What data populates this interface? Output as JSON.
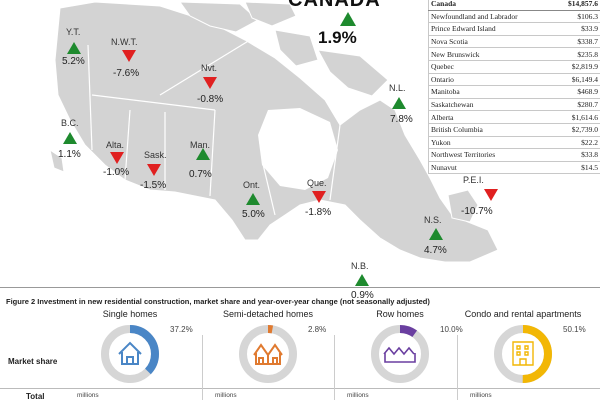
{
  "chart_data": [
    {
      "type": "map",
      "title": "CANADA",
      "national": {
        "label": "CANADA",
        "change": "1.9%",
        "direction": "up"
      },
      "regions": [
        {
          "abbr": "Y.T.",
          "change": "5.2%",
          "direction": "up"
        },
        {
          "abbr": "N.W.T.",
          "change": "-7.6%",
          "direction": "down"
        },
        {
          "abbr": "Nvt.",
          "change": "-0.8%",
          "direction": "down"
        },
        {
          "abbr": "B.C.",
          "change": "1.1%",
          "direction": "up"
        },
        {
          "abbr": "Alta.",
          "change": "-1.0%",
          "direction": "down"
        },
        {
          "abbr": "Sask.",
          "change": "-1.5%",
          "direction": "down"
        },
        {
          "abbr": "Man.",
          "change": "0.7%",
          "direction": "up"
        },
        {
          "abbr": "Ont.",
          "change": "5.0%",
          "direction": "up"
        },
        {
          "abbr": "Que.",
          "change": "-1.8%",
          "direction": "down"
        },
        {
          "abbr": "N.L.",
          "change": "7.8%",
          "direction": "up"
        },
        {
          "abbr": "P.E.I.",
          "change": "-10.7%",
          "direction": "down"
        },
        {
          "abbr": "N.S.",
          "change": "4.7%",
          "direction": "up"
        },
        {
          "abbr": "N.B.",
          "change": "0.9%",
          "direction": "up"
        }
      ],
      "colors": {
        "up": "#1e8a2e",
        "down": "#e02020",
        "land": "#d3d3d3",
        "border": "#ffffff"
      }
    },
    {
      "type": "table",
      "rows": [
        {
          "name": "Canada",
          "value": "$14,857.6"
        },
        {
          "name": "Newfoundland and Labrador",
          "value": "$106.3"
        },
        {
          "name": "Prince Edward Island",
          "value": "$33.9"
        },
        {
          "name": "Nova Scotia",
          "value": "$338.7"
        },
        {
          "name": "New Brunswick",
          "value": "$235.8"
        },
        {
          "name": "Quebec",
          "value": "$2,819.9"
        },
        {
          "name": "Ontario",
          "value": "$6,149.4"
        },
        {
          "name": "Manitoba",
          "value": "$468.9"
        },
        {
          "name": "Saskatchewan",
          "value": "$280.7"
        },
        {
          "name": "Alberta",
          "value": "$1,614.6"
        },
        {
          "name": "British Columbia",
          "value": "$2,739.0"
        },
        {
          "name": "Yukon",
          "value": "$22.2"
        },
        {
          "name": "Northwest Territories",
          "value": "$33.8"
        },
        {
          "name": "Nunavut",
          "value": "$14.5"
        }
      ]
    },
    {
      "type": "pie",
      "title": "Figure 2 Investment in new residential construction, market share and year-over-year change (not seasonally adjusted)",
      "row_labels": {
        "market_share": "Market share",
        "total": "Total"
      },
      "unit_word": "millions",
      "categories": [
        "Single homes",
        "Semi-detached homes",
        "Row homes",
        "Condo and rental apartments"
      ],
      "values": [
        37.2,
        2.8,
        10.0,
        50.1
      ],
      "value_labels": [
        "37.2%",
        "2.8%",
        "10.0%",
        "50.1%"
      ],
      "colors": [
        "#4a86c6",
        "#e07a30",
        "#6a3fa0",
        "#f2b705"
      ],
      "track_color": "#d6d6d6",
      "icons": [
        "house-icon",
        "semi-detached-icon",
        "row-homes-icon",
        "apartment-icon"
      ]
    }
  ]
}
